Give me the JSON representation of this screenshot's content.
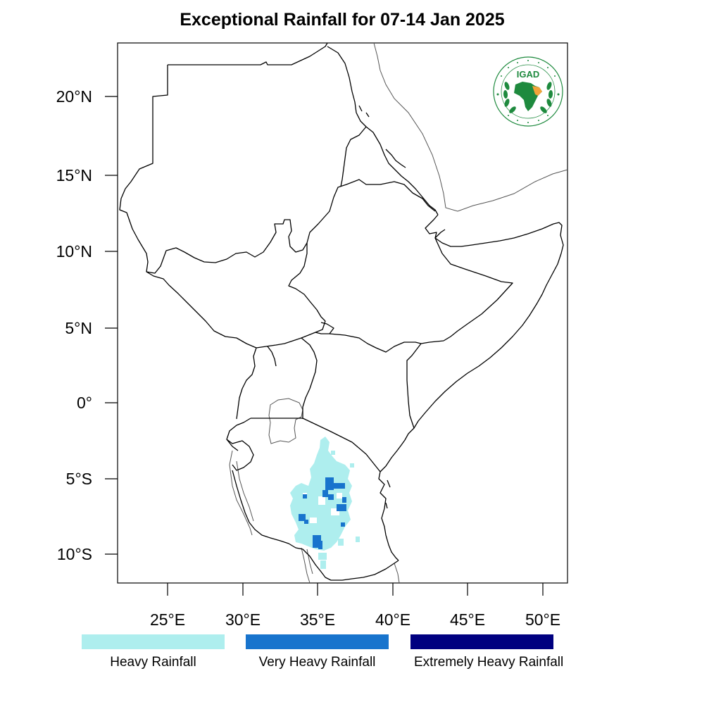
{
  "title": "Exceptional Rainfall for 07-14 Jan 2025",
  "logo": {
    "text": "IGAD",
    "ring_text": "INTERGOVERNMENTAL AUTHORITY ON DEVELOPMENT",
    "colors": {
      "green": "#1e8a3e",
      "orange": "#f2a33a"
    }
  },
  "axes": {
    "lat_ticks": [
      "20°N",
      "15°N",
      "10°N",
      "5°N",
      "0°",
      "5°S",
      "10°S"
    ],
    "lon_ticks": [
      "25°E",
      "30°E",
      "35°E",
      "40°E",
      "45°E",
      "50°E"
    ],
    "lon_range": [
      21.8,
      51.6
    ],
    "lat_range": [
      -11.9,
      23.6
    ]
  },
  "legend": [
    {
      "label": "Heavy Rainfall",
      "color": "#aeeeee"
    },
    {
      "label": "Very Heavy Rainfall",
      "color": "#1874cd"
    },
    {
      "label": "Extremely Heavy Rainfall",
      "color": "#000080"
    }
  ],
  "colors": {
    "border": "#000000",
    "coast": "#555555"
  }
}
